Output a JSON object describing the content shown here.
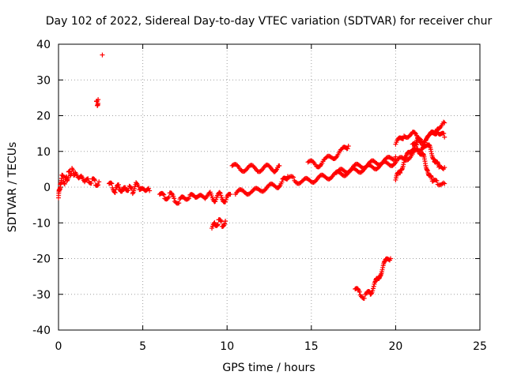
{
  "chart_data": {
    "type": "scatter",
    "title": "Day 102 of 2022, Sidereal Day-to-day VTEC variation (SDTVAR) for receiver chur",
    "xlabel": "GPS time / hours",
    "ylabel": "SDTVAR / TECUs",
    "xlim": [
      0,
      25
    ],
    "ylim": [
      -40,
      40
    ],
    "x_ticks": [
      0,
      5,
      10,
      15,
      20,
      25
    ],
    "y_ticks": [
      -40,
      -30,
      -20,
      -10,
      0,
      10,
      20,
      30,
      40
    ],
    "grid": true,
    "marker": "+",
    "series": [
      {
        "name": "SDTVAR",
        "color": "#ff0000",
        "segments": [
          {
            "x": [
              0.0,
              0.1,
              0.2,
              0.3,
              0.4,
              0.5,
              0.6,
              0.7,
              0.8,
              0.9,
              1.0,
              1.2,
              1.4,
              1.6,
              1.8,
              2.0,
              2.2,
              2.4
            ],
            "y": [
              -3.0,
              1.0,
              3.0,
              2.0,
              1.5,
              2.5,
              3.5,
              4.0,
              4.5,
              4.0,
              3.5,
              3.0,
              2.5,
              2.0,
              1.5,
              2.0,
              1.0,
              1.5
            ]
          },
          {
            "x": [
              2.25,
              2.3,
              2.35
            ],
            "y": [
              24.0,
              23.0,
              24.5
            ]
          },
          {
            "x": [
              2.6
            ],
            "y": [
              37.0
            ]
          },
          {
            "x": [
              3.0,
              3.2,
              3.4,
              3.6,
              3.8,
              4.0,
              4.2,
              4.4,
              4.6,
              4.8,
              5.0,
              5.2,
              5.4
            ],
            "y": [
              1.0,
              0.0,
              -1.0,
              0.5,
              -1.5,
              0.0,
              -0.5,
              -1.0,
              0.5,
              0.0,
              -1.0,
              -0.5,
              -1.0
            ]
          },
          {
            "x": [
              6.0,
              6.3,
              6.6,
              6.9,
              7.2,
              7.5,
              7.8,
              8.1,
              8.4,
              8.7,
              9.0,
              9.3,
              9.6,
              9.9,
              10.2
            ],
            "y": [
              -2.0,
              -3.0,
              -2.0,
              -3.5,
              -4.0,
              -2.5,
              -3.0,
              -2.0,
              -3.0,
              -2.5,
              -2.0,
              -3.5,
              -2.0,
              -4.0,
              -2.0
            ]
          },
          {
            "x": [
              9.1,
              9.3,
              9.5,
              9.7,
              9.9
            ],
            "y": [
              -11.5,
              -10.5,
              -9.5,
              -10.5,
              -9.5
            ]
          },
          {
            "x": [
              10.3,
              10.8,
              11.3,
              11.8,
              12.3,
              12.8,
              13.1
            ],
            "y": [
              6.0,
              5.0,
              5.5,
              5.0,
              5.5,
              5.0,
              6.0
            ]
          },
          {
            "x": [
              10.5,
              11.0,
              11.5,
              12.0,
              12.5,
              13.0,
              13.3,
              13.6
            ],
            "y": [
              -2.0,
              -1.0,
              -1.5,
              -0.5,
              0.0,
              0.5,
              1.5,
              3.0
            ]
          },
          {
            "x": [
              13.6,
              14.0,
              14.5,
              15.0,
              15.5,
              16.0,
              16.5,
              17.0,
              17.5,
              18.0,
              18.5,
              19.0,
              19.5,
              20.0,
              20.5,
              21.0,
              21.5,
              22.0,
              22.5,
              22.9
            ],
            "y": [
              2.5,
              2.0,
              1.5,
              2.0,
              2.5,
              3.0,
              3.5,
              4.0,
              4.5,
              5.0,
              5.5,
              6.0,
              6.5,
              7.0,
              8.0,
              9.0,
              11.0,
              14.0,
              17.0,
              18.0
            ]
          },
          {
            "x": [
              14.8,
              15.3,
              15.8,
              16.3,
              16.8,
              17.2
            ],
            "y": [
              7.0,
              6.0,
              7.5,
              8.5,
              10.0,
              11.5
            ]
          },
          {
            "x": [
              16.5,
              17.0,
              17.5,
              18.0,
              18.5,
              19.0,
              19.5,
              20.0
            ],
            "y": [
              4.0,
              4.5,
              5.5,
              6.0,
              6.5,
              7.0,
              7.5,
              8.5
            ]
          },
          {
            "x": [
              20.0,
              20.3,
              20.6,
              21.0,
              21.3,
              21.6,
              22.0,
              22.3,
              22.6,
              22.9
            ],
            "y": [
              2.0,
              5.0,
              8.0,
              11.0,
              13.0,
              12.5,
              11.0,
              8.0,
              5.0,
              5.5
            ]
          },
          {
            "x": [
              20.0,
              20.5,
              21.0,
              21.5,
              22.0,
              22.5,
              22.9
            ],
            "y": [
              12.0,
              14.5,
              15.0,
              13.0,
              14.0,
              16.0,
              14.0
            ]
          },
          {
            "x": [
              21.0,
              21.3,
              21.6,
              21.9,
              22.2,
              22.5,
              22.9
            ],
            "y": [
              12.0,
              11.0,
              9.0,
              5.0,
              1.0,
              1.5,
              1.0
            ]
          },
          {
            "x": [
              17.6,
              17.9,
              18.2,
              18.5,
              18.8,
              19.1,
              19.4,
              19.7
            ],
            "y": [
              -28.5,
              -30.0,
              -30.5,
              -29.5,
              -27.0,
              -24.0,
              -21.0,
              -20.0
            ]
          }
        ]
      }
    ]
  }
}
